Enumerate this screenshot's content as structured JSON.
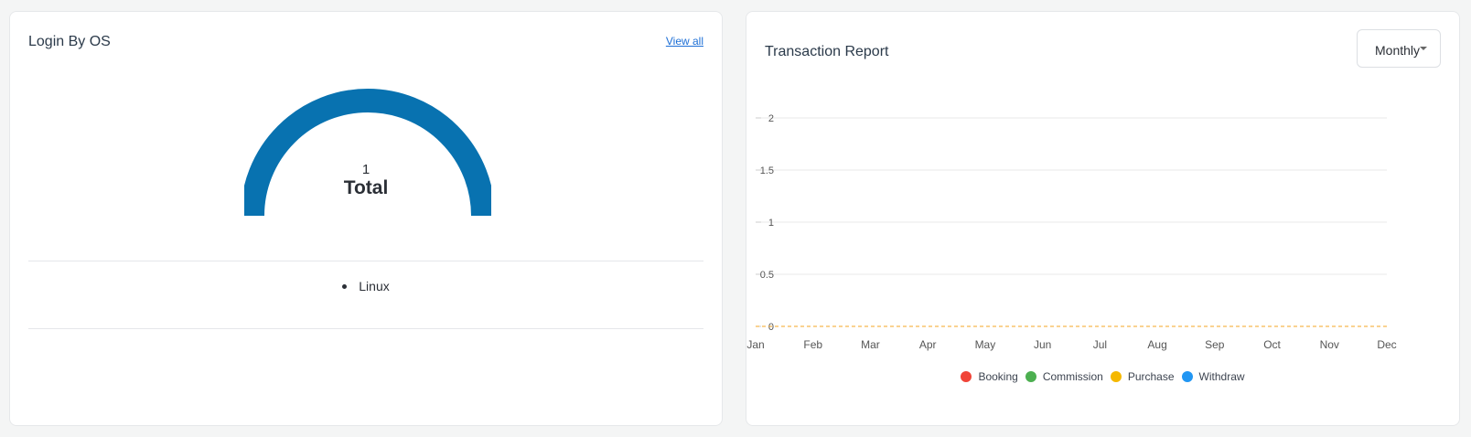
{
  "login_os": {
    "title": "Login By OS",
    "view_all": "View all",
    "total_value": "1",
    "total_label": "Total",
    "items": [
      {
        "label": "Linux"
      }
    ],
    "gauge_color": "#0872b0"
  },
  "transaction": {
    "title": "Transaction Report",
    "period_select": "Monthly",
    "legend_colors": {
      "Booking": "#f04438",
      "Commission": "#4caf50",
      "Purchase": "#f5b800",
      "Withdraw": "#2196f3"
    },
    "zero_line_color": "#f5a623",
    "chart_data": {
      "type": "line",
      "categories": [
        "Jan",
        "Feb",
        "Mar",
        "Apr",
        "May",
        "Jun",
        "Jul",
        "Aug",
        "Sep",
        "Oct",
        "Nov",
        "Dec"
      ],
      "ylim": [
        0,
        2
      ],
      "yticks": [
        "0",
        "0.5",
        "1",
        "1.5",
        "2"
      ],
      "grid": true,
      "legend_position": "bottom",
      "series": [
        {
          "name": "Booking",
          "values": [
            0,
            0,
            0,
            0,
            0,
            0,
            0,
            0,
            0,
            0,
            0,
            0
          ]
        },
        {
          "name": "Commission",
          "values": [
            0,
            0,
            0,
            0,
            0,
            0,
            0,
            0,
            0,
            0,
            0,
            0
          ]
        },
        {
          "name": "Purchase",
          "values": [
            0,
            0,
            0,
            0,
            0,
            0,
            0,
            0,
            0,
            0,
            0,
            0
          ]
        },
        {
          "name": "Withdraw",
          "values": [
            0,
            0,
            0,
            0,
            0,
            0,
            0,
            0,
            0,
            0,
            0,
            0
          ]
        }
      ]
    }
  }
}
